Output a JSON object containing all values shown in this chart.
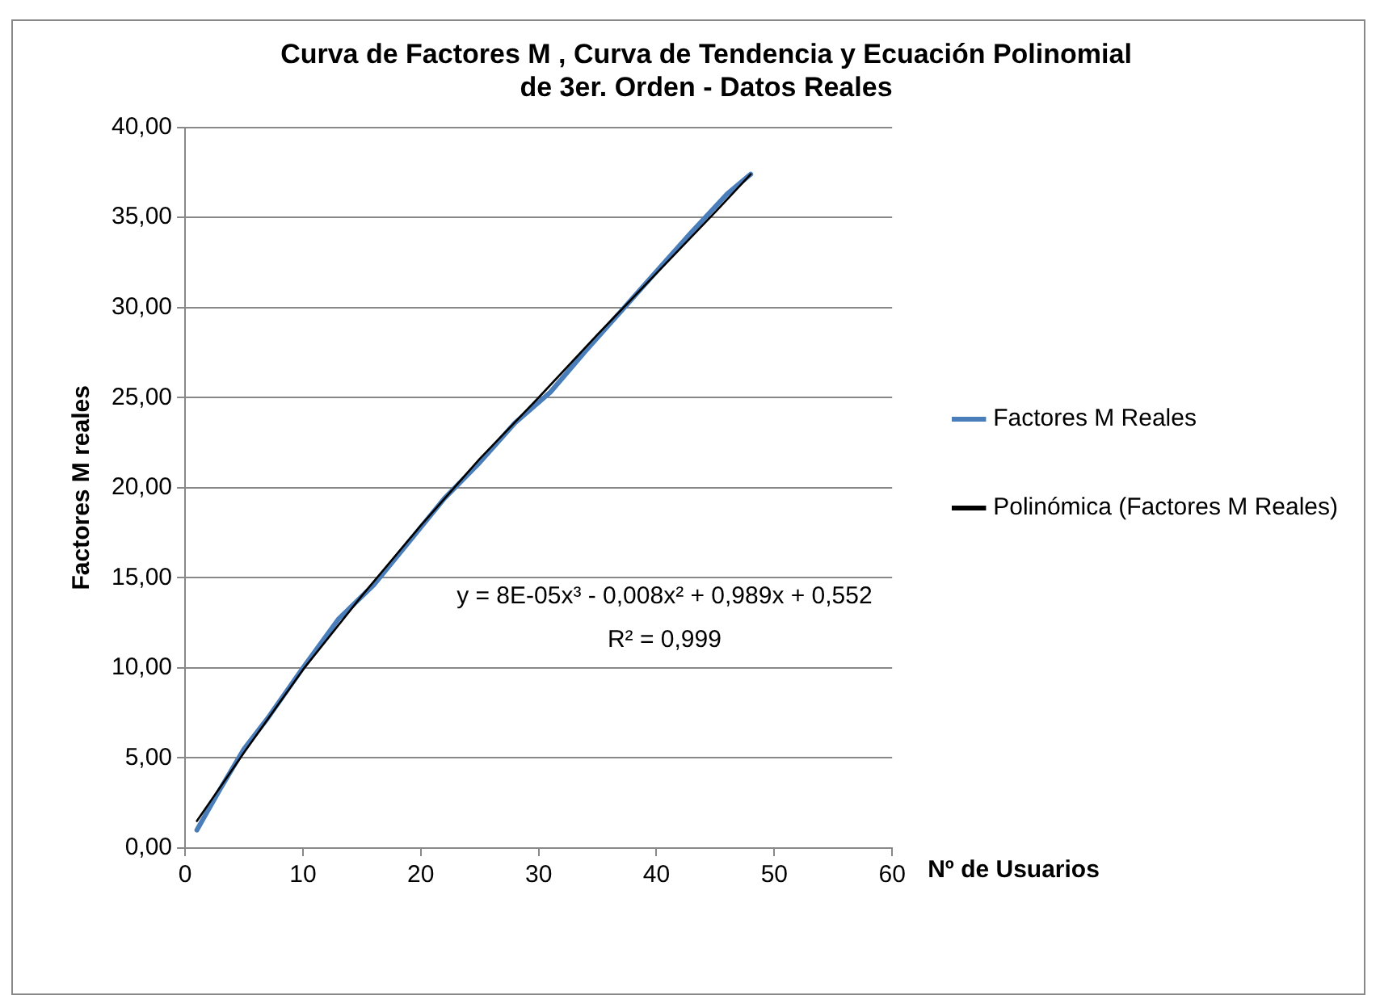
{
  "chart_data": {
    "type": "line",
    "title": "Curva de Factores M , Curva de Tendencia y Ecuación Polinomial de 3er. Orden - Datos Reales",
    "xlabel": "Nº de Usuarios",
    "ylabel": "Factores M reales",
    "xlim": [
      0,
      60
    ],
    "xticks": [
      0,
      10,
      20,
      30,
      40,
      50,
      60
    ],
    "ylim": [
      0,
      40
    ],
    "yticks": [
      {
        "value": 0,
        "label": "0,00"
      },
      {
        "value": 5,
        "label": "5,00"
      },
      {
        "value": 10,
        "label": "10,00"
      },
      {
        "value": 15,
        "label": "15,00"
      },
      {
        "value": 20,
        "label": "20,00"
      },
      {
        "value": 25,
        "label": "25,00"
      },
      {
        "value": 30,
        "label": "30,00"
      },
      {
        "value": 35,
        "label": "35,00"
      },
      {
        "value": 40,
        "label": "40,00"
      }
    ],
    "grid": "y",
    "legend": "right",
    "marker": "none",
    "line_style": "solid",
    "annotations": [
      "y = 8E-05x³ - 0,008x² + 0,989x + 0,552",
      "R² = 0,999"
    ],
    "series": [
      {
        "name": "Factores M Reales",
        "color": "#4a7ebb",
        "x": [
          1,
          3,
          5,
          7,
          10,
          13,
          16,
          19,
          22,
          25,
          28,
          31,
          34,
          37,
          40,
          43,
          46,
          48
        ],
        "values": [
          1.0,
          3.3,
          5.5,
          7.2,
          10.0,
          12.7,
          14.6,
          17.0,
          19.4,
          21.4,
          23.6,
          25.3,
          27.6,
          29.8,
          32.0,
          34.2,
          36.3,
          37.4
        ]
      },
      {
        "name": "Polinómica (Factores M Reales)",
        "color": "#000000",
        "x": [
          1,
          5,
          10,
          15,
          20,
          25,
          30,
          35,
          40,
          45,
          48
        ],
        "values": [
          1.5,
          5.3,
          9.9,
          14.0,
          17.9,
          21.6,
          25.0,
          28.5,
          31.9,
          35.3,
          37.4
        ]
      }
    ]
  }
}
